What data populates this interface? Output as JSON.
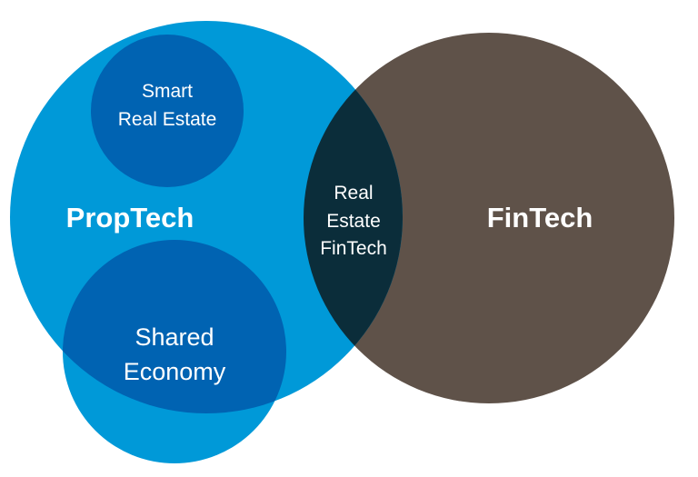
{
  "diagram": {
    "proptech": "PropTech",
    "fintech": "FinTech",
    "smart_real_estate": [
      "Smart",
      "Real Estate"
    ],
    "shared_economy": [
      "Shared",
      "Economy"
    ],
    "real_estate_fintech": [
      "Real",
      "Estate",
      "FinTech"
    ]
  },
  "colors": {
    "proptech": "#0099d8",
    "fintech": "#5f5249",
    "sub_circle": "#0063b2",
    "intersection": "#0b2d3a",
    "text": "#ffffff"
  }
}
